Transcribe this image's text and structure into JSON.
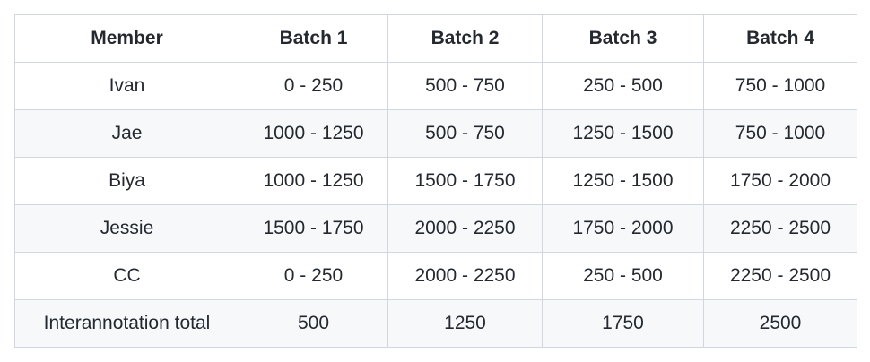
{
  "table": {
    "headers": [
      "Member",
      "Batch 1",
      "Batch 2",
      "Batch 3",
      "Batch 4"
    ],
    "rows": [
      [
        "Ivan",
        "0 - 250",
        "500 - 750",
        "250 - 500",
        "750 - 1000"
      ],
      [
        "Jae",
        "1000 - 1250",
        "500 - 750",
        "1250 - 1500",
        "750 - 1000"
      ],
      [
        "Biya",
        "1000 - 1250",
        "1500 - 1750",
        "1250 - 1500",
        "1750 - 2000"
      ],
      [
        "Jessie",
        "1500 - 1750",
        "2000 - 2250",
        "1750 - 2000",
        "2250 - 2500"
      ],
      [
        "CC",
        "0 - 250",
        "2000 - 2250",
        "250 - 500",
        "2250 - 2500"
      ],
      [
        "Interannotation total",
        "500",
        "1250",
        "1750",
        "2500"
      ]
    ]
  }
}
